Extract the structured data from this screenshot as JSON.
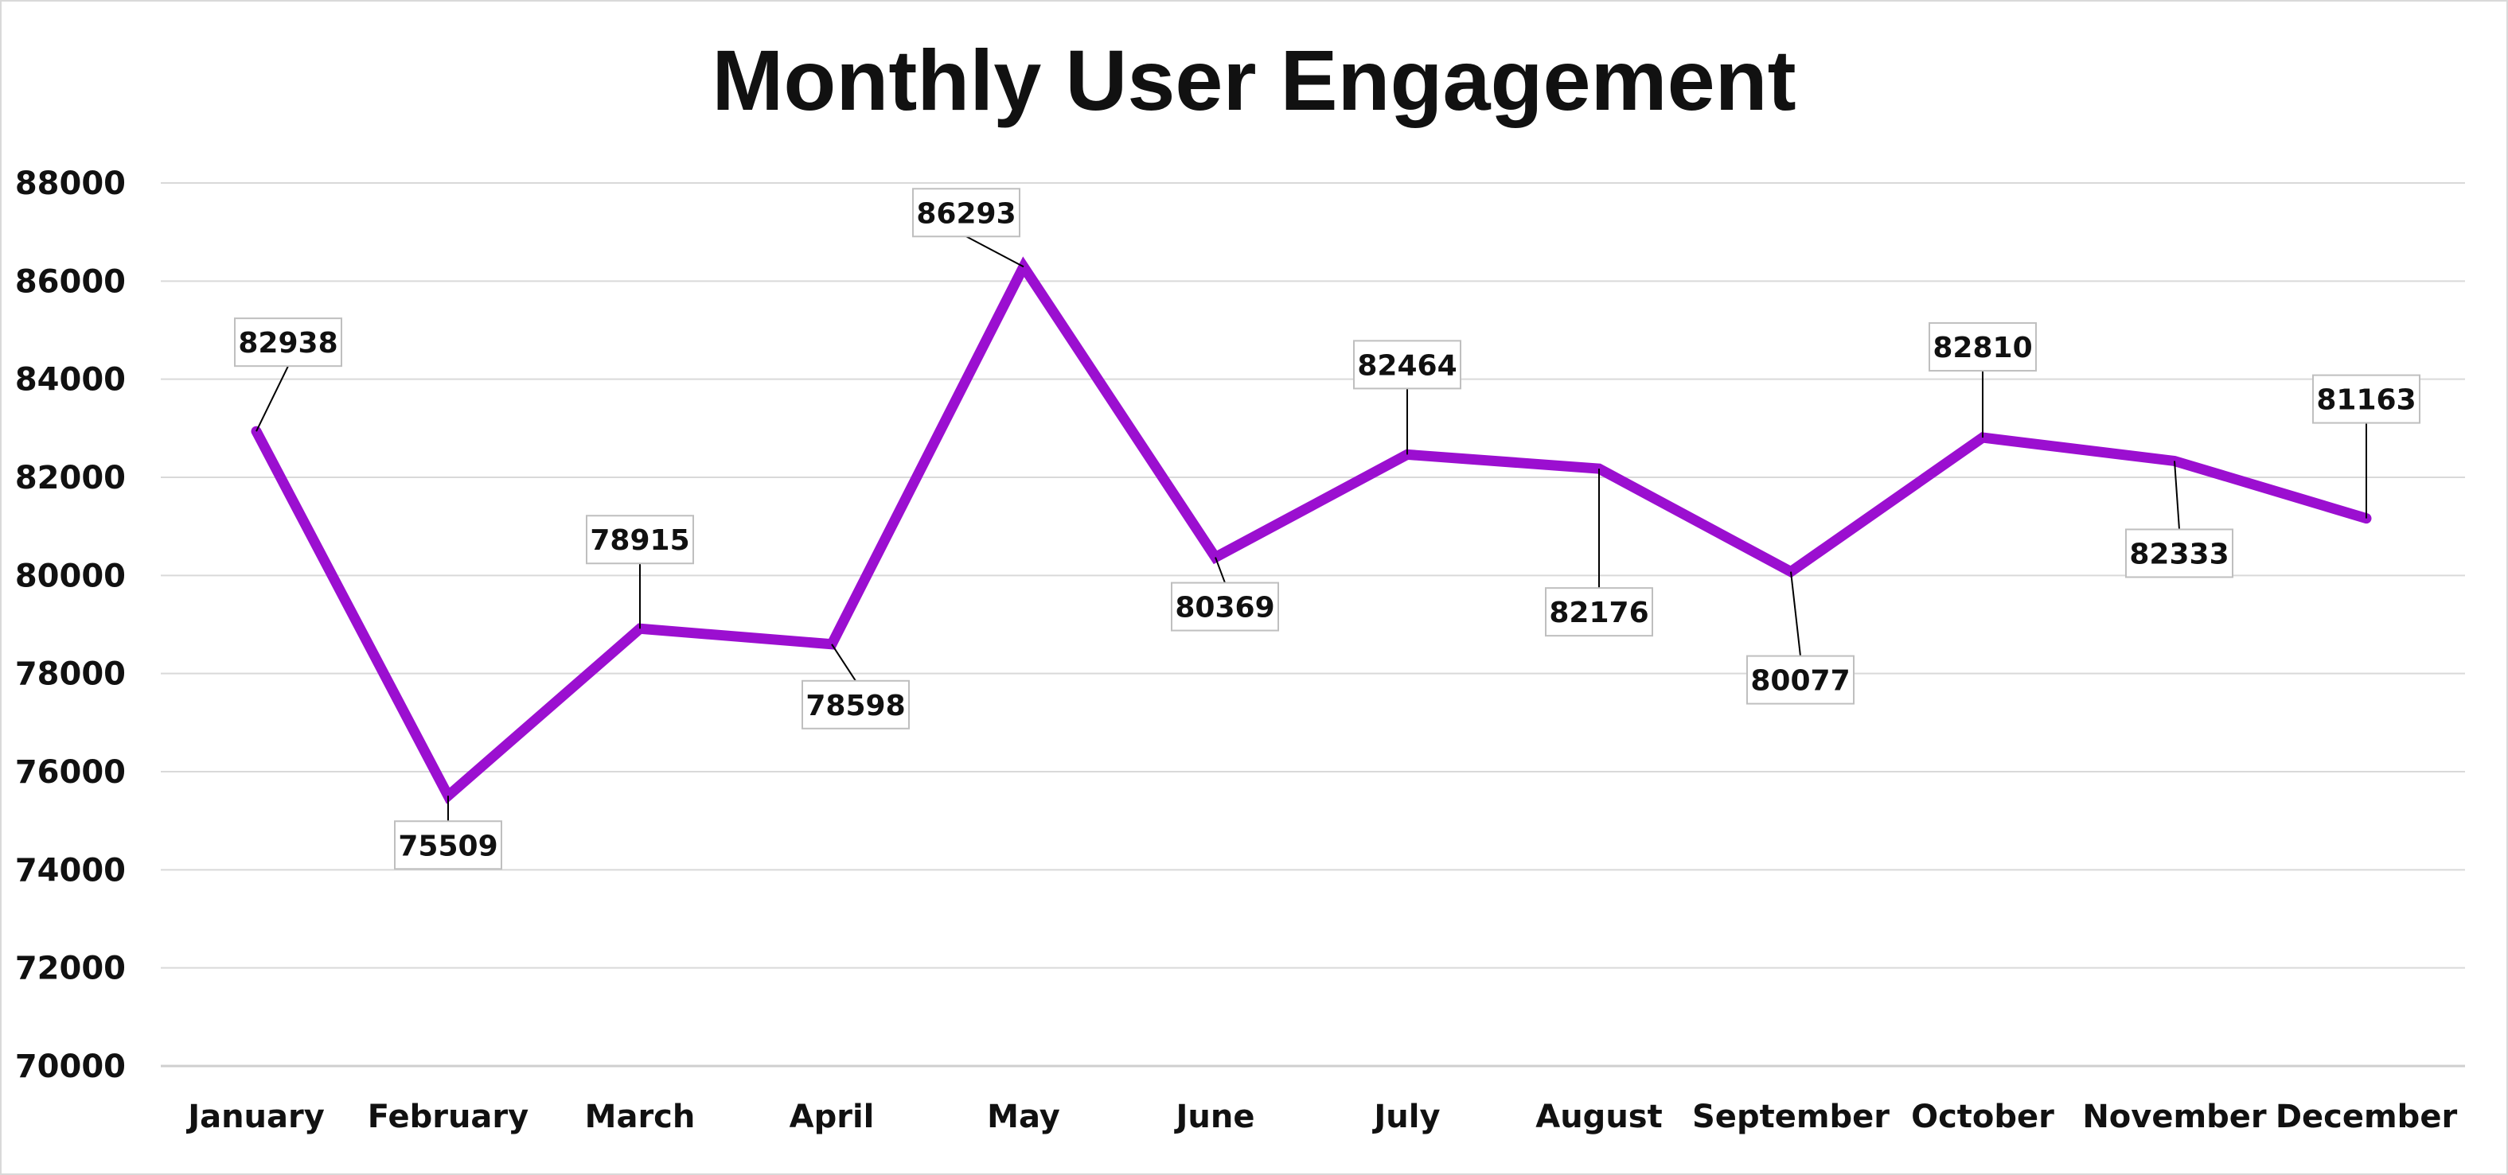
{
  "chart_data": {
    "type": "line",
    "title": "Monthly User Engagement",
    "xlabel": "",
    "ylabel": "",
    "categories": [
      "January",
      "February",
      "March",
      "April",
      "May",
      "June",
      "July",
      "August",
      "September",
      "October",
      "November",
      "December"
    ],
    "series": [
      {
        "values": [
          82938,
          75509,
          78915,
          78598,
          86293,
          80369,
          82464,
          82176,
          80077,
          82810,
          82333,
          81163
        ],
        "color": "#9b0fd0"
      }
    ],
    "data_labels": [
      "82938",
      "75509",
      "78915",
      "78598",
      "86293",
      "80369",
      "82464",
      "82176",
      "80077",
      "82810",
      "82333",
      "81163"
    ],
    "label_positions": [
      "above",
      "below",
      "above",
      "below",
      "above",
      "below",
      "above",
      "below",
      "below",
      "above",
      "below",
      "above"
    ],
    "ylim": [
      70000,
      88000
    ],
    "yticks": [
      70000,
      72000,
      74000,
      76000,
      78000,
      80000,
      82000,
      84000,
      86000,
      88000
    ],
    "ytick_labels": [
      "70000",
      "72000",
      "74000",
      "76000",
      "78000",
      "80000",
      "82000",
      "84000",
      "86000",
      "88000"
    ],
    "grid": true,
    "legend": "none"
  }
}
